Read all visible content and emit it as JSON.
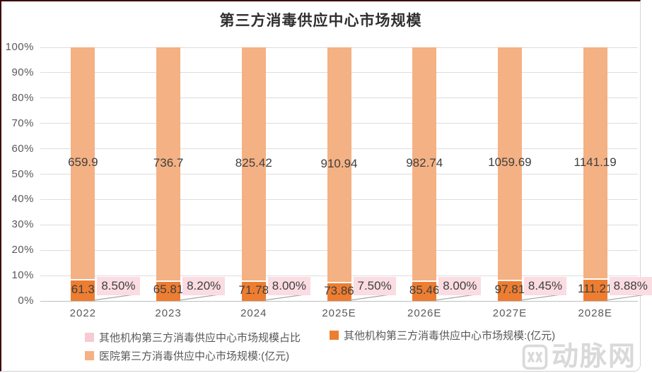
{
  "title": "第三方消毒供应中心市场规模",
  "chart_data": {
    "type": "bar",
    "subtype": "100-percent-stacked-column",
    "title": "第三方消毒供应中心市场规模",
    "categories": [
      "2022",
      "2023",
      "2024",
      "2025E",
      "2026E",
      "2027E",
      "2028E"
    ],
    "series": [
      {
        "name": "医院第三方消毒供应中心市场规模:(亿元)",
        "role": "hospital",
        "color": "#F4B183",
        "values": [
          659.9,
          736.7,
          825.42,
          910.94,
          982.74,
          1059.69,
          1141.19
        ],
        "labels": [
          "659.9",
          "736.7",
          "825.42",
          "910.94",
          "982.74",
          "1059.69",
          "1141.19"
        ]
      },
      {
        "name": "其他机构第三方消毒供应中心市场规模:(亿元)",
        "role": "other",
        "color": "#ED7D31",
        "values": [
          61.3,
          65.81,
          71.78,
          73.86,
          85.46,
          97.81,
          111.21
        ],
        "labels": [
          "61.3",
          "65.81",
          "71.78",
          "73.86",
          "85.46",
          "97.81",
          "111.21"
        ]
      },
      {
        "name": "其他机构第三方消毒供应中心市场规模占比",
        "role": "share",
        "color": "#F6CBD3",
        "label_bg": "#FADCE2",
        "values": [
          8.5,
          8.2,
          8.0,
          7.5,
          8.0,
          8.45,
          8.88
        ],
        "labels": [
          "8.50%",
          "8.20%",
          "8.00%",
          "7.50%",
          "8.00%",
          "8.45%",
          "8.88%"
        ]
      }
    ],
    "ylim": [
      0,
      100
    ],
    "y_tick_step": 10,
    "y_tick_labels": [
      "0%",
      "10%",
      "20%",
      "30%",
      "40%",
      "50%",
      "60%",
      "70%",
      "80%",
      "90%",
      "100%"
    ],
    "grid": true,
    "legend_position": "bottom"
  },
  "legend": {
    "items": [
      {
        "label": "其他机构第三方消毒供应中心市场规模占比",
        "color": "#F6CBD3"
      },
      {
        "label": "其他机构第三方消毒供应中心市场规模:(亿元)",
        "color": "#ED7D31"
      },
      {
        "label": "医院第三方消毒供应中心市场规模:(亿元)",
        "color": "#F4B183"
      }
    ]
  },
  "watermark": {
    "text": "动脉网",
    "logo": "vcbeat-logo"
  },
  "colors": {
    "grid": "#DCDCDC",
    "axis_line": "#BFBFBF",
    "axis_text": "#595959",
    "data_label": "#3F3F3F",
    "leader_line": "#A6A6A6",
    "frame_border_dark": "#3E0909",
    "frame_border_light": "#CFCFCF",
    "watermark": "#D9D9D9"
  }
}
